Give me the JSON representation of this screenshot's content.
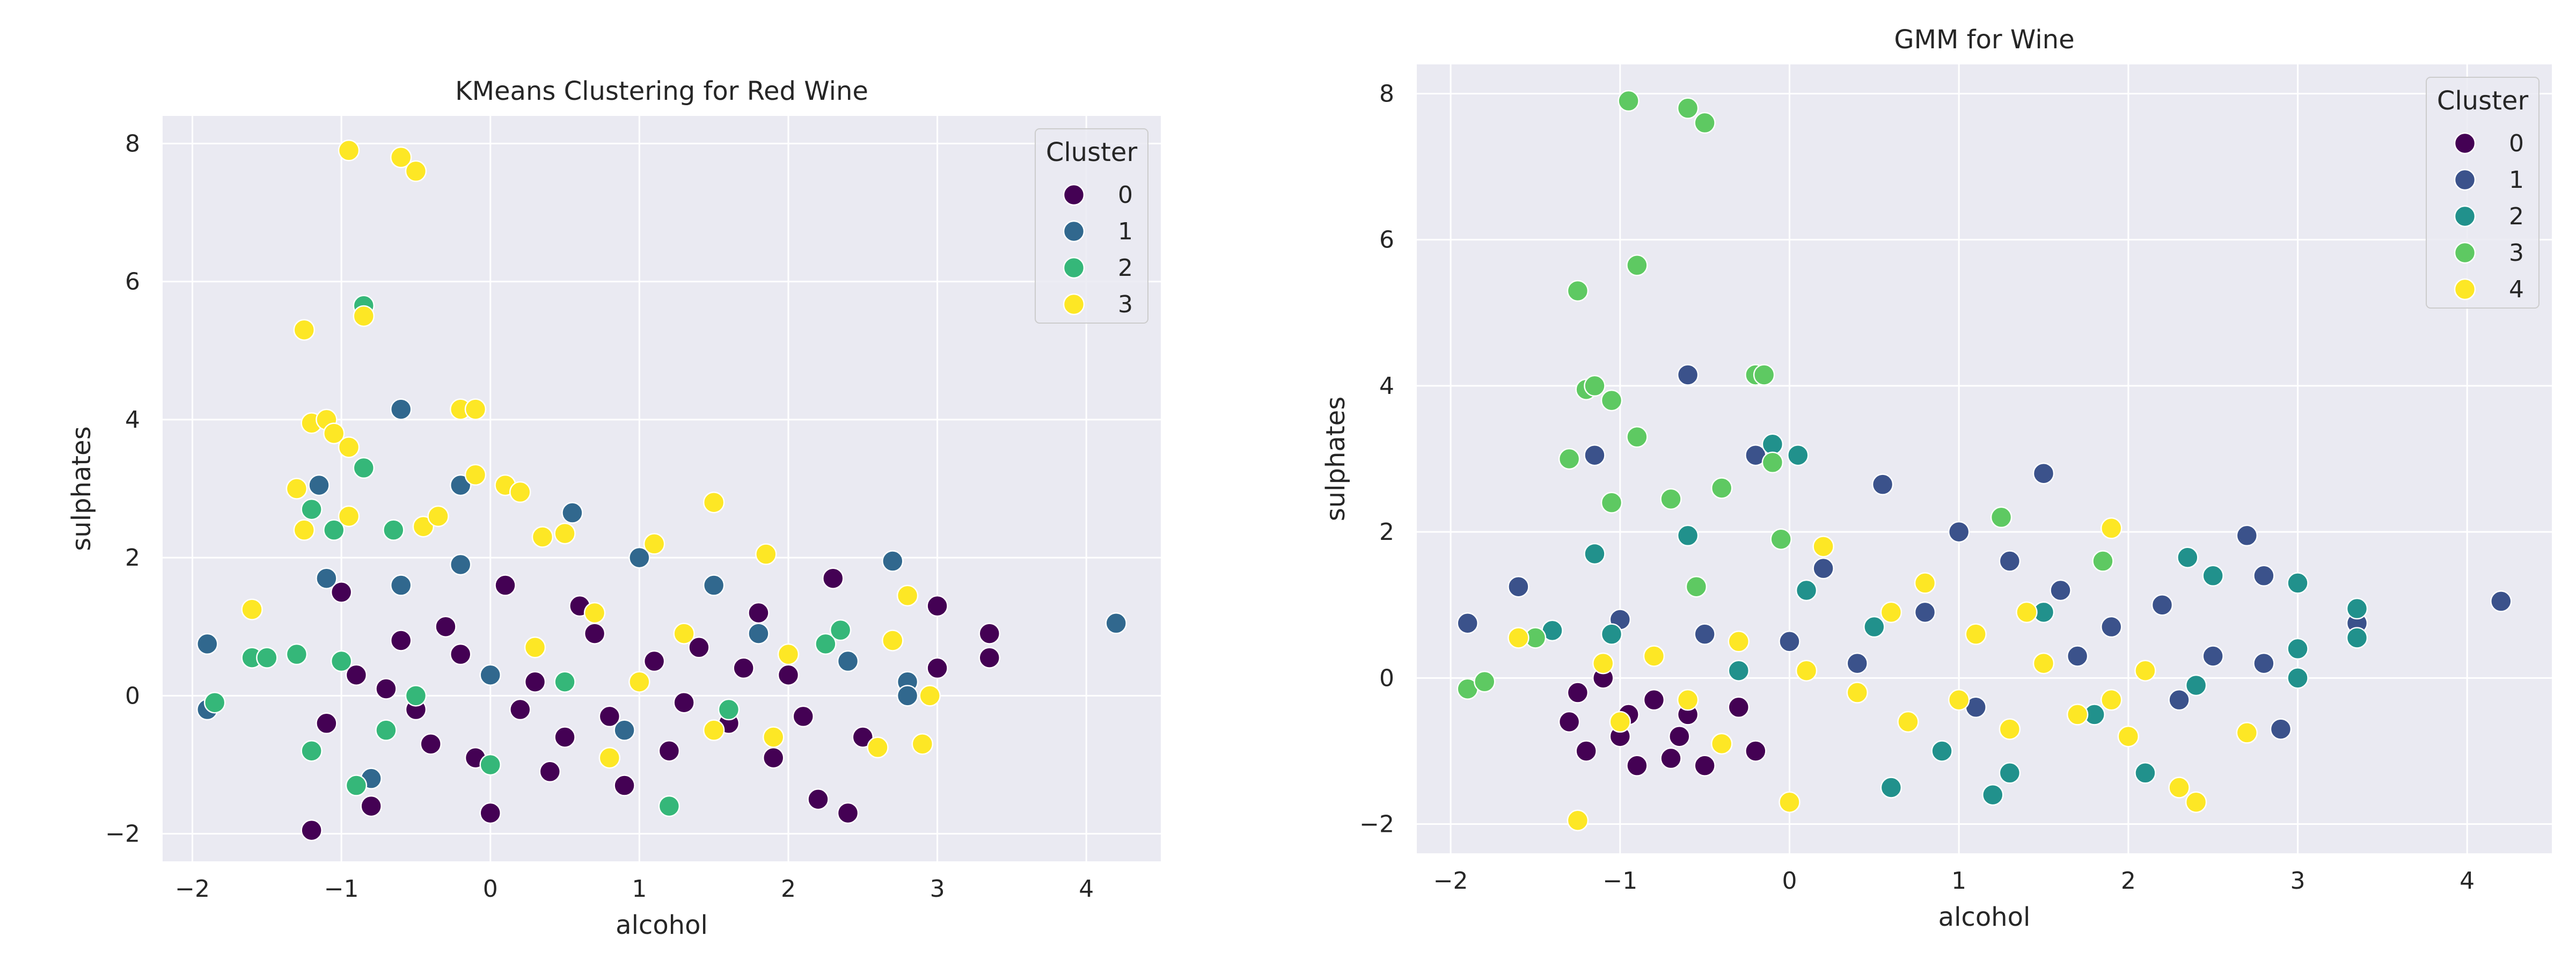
{
  "chart_data": [
    {
      "type": "scatter",
      "title": "KMeans Clustering for Red Wine",
      "xlabel": "alcohol",
      "ylabel": "sulphates",
      "xlim": [
        -2.2,
        4.5
      ],
      "ylim": [
        -2.4,
        8.4
      ],
      "xticks": [
        -2,
        -1,
        0,
        1,
        2,
        3,
        4
      ],
      "yticks": [
        -2,
        0,
        2,
        4,
        6,
        8
      ],
      "grid": true,
      "legend_title": "Cluster",
      "legend_position": "top-right",
      "series": [
        {
          "name": "0",
          "color": "#440154",
          "points": [
            [
              -1.2,
              -1.95
            ],
            [
              -1.0,
              1.5
            ],
            [
              -0.9,
              0.3
            ],
            [
              -0.8,
              -1.6
            ],
            [
              -0.6,
              0.8
            ],
            [
              -0.5,
              -0.2
            ],
            [
              -0.3,
              1.0
            ],
            [
              -0.1,
              -0.9
            ],
            [
              0.0,
              -1.7
            ],
            [
              0.1,
              1.6
            ],
            [
              0.3,
              0.2
            ],
            [
              0.5,
              -0.6
            ],
            [
              0.6,
              1.3
            ],
            [
              0.8,
              -0.3
            ],
            [
              0.9,
              -1.3
            ],
            [
              1.1,
              0.5
            ],
            [
              1.2,
              -0.8
            ],
            [
              1.4,
              0.7
            ],
            [
              1.6,
              -0.4
            ],
            [
              1.8,
              1.2
            ],
            [
              1.9,
              -0.9
            ],
            [
              2.0,
              0.3
            ],
            [
              2.2,
              -1.5
            ],
            [
              2.3,
              1.7
            ],
            [
              2.4,
              -1.7
            ],
            [
              2.5,
              -0.6
            ],
            [
              3.0,
              1.3
            ],
            [
              3.0,
              0.4
            ],
            [
              3.35,
              0.9
            ],
            [
              3.35,
              0.55
            ],
            [
              -1.1,
              -0.4
            ],
            [
              -0.7,
              0.1
            ],
            [
              -0.2,
              0.6
            ],
            [
              0.2,
              -0.2
            ],
            [
              0.7,
              0.9
            ],
            [
              1.3,
              -0.1
            ],
            [
              1.7,
              0.4
            ],
            [
              2.1,
              -0.3
            ],
            [
              -0.4,
              -0.7
            ],
            [
              0.4,
              -1.1
            ]
          ]
        },
        {
          "name": "1",
          "color": "#31688e",
          "points": [
            [
              -1.9,
              0.75
            ],
            [
              -1.9,
              -0.2
            ],
            [
              -1.15,
              3.05
            ],
            [
              -1.1,
              1.7
            ],
            [
              -0.6,
              4.15
            ],
            [
              -0.6,
              1.6
            ],
            [
              -0.2,
              3.05
            ],
            [
              -0.2,
              1.9
            ],
            [
              0.55,
              2.65
            ],
            [
              1.0,
              2.0
            ],
            [
              1.5,
              1.6
            ],
            [
              2.7,
              1.95
            ],
            [
              2.8,
              0.2
            ],
            [
              2.8,
              0.0
            ],
            [
              4.2,
              1.05
            ],
            [
              -0.8,
              -1.2
            ],
            [
              0.0,
              0.3
            ],
            [
              0.9,
              -0.5
            ],
            [
              1.8,
              0.9
            ],
            [
              2.4,
              0.5
            ]
          ]
        },
        {
          "name": "2",
          "color": "#35b779",
          "points": [
            [
              -1.85,
              -0.1
            ],
            [
              -1.6,
              0.55
            ],
            [
              -1.5,
              0.55
            ],
            [
              -1.3,
              0.6
            ],
            [
              -1.2,
              2.7
            ],
            [
              -1.05,
              2.4
            ],
            [
              -0.85,
              3.3
            ],
            [
              -0.85,
              5.65
            ],
            [
              -0.65,
              2.4
            ],
            [
              -1.2,
              -0.8
            ],
            [
              -0.9,
              -1.3
            ],
            [
              -0.5,
              0.0
            ],
            [
              0.0,
              -1.0
            ],
            [
              1.2,
              -1.6
            ],
            [
              2.25,
              0.75
            ],
            [
              2.35,
              0.95
            ],
            [
              -1.0,
              0.5
            ],
            [
              -0.7,
              -0.5
            ],
            [
              0.5,
              0.2
            ],
            [
              1.6,
              -0.2
            ]
          ]
        },
        {
          "name": "3",
          "color": "#fde725",
          "points": [
            [
              -1.6,
              1.25
            ],
            [
              -1.3,
              3.0
            ],
            [
              -1.25,
              5.3
            ],
            [
              -1.25,
              2.4
            ],
            [
              -1.2,
              3.95
            ],
            [
              -1.1,
              4.0
            ],
            [
              -1.05,
              3.8
            ],
            [
              -0.95,
              7.9
            ],
            [
              -0.95,
              3.6
            ],
            [
              -0.95,
              2.6
            ],
            [
              -0.85,
              5.5
            ],
            [
              -0.6,
              7.8
            ],
            [
              -0.5,
              7.6
            ],
            [
              -0.45,
              2.45
            ],
            [
              -0.35,
              2.6
            ],
            [
              -0.2,
              4.15
            ],
            [
              -0.1,
              4.15
            ],
            [
              -0.1,
              3.2
            ],
            [
              0.1,
              3.05
            ],
            [
              0.2,
              2.95
            ],
            [
              0.35,
              2.3
            ],
            [
              0.5,
              2.35
            ],
            [
              1.1,
              2.2
            ],
            [
              1.5,
              2.8
            ],
            [
              1.85,
              2.05
            ],
            [
              2.7,
              0.8
            ],
            [
              2.8,
              1.45
            ],
            [
              2.9,
              -0.7
            ],
            [
              2.95,
              0.0
            ],
            [
              2.6,
              -0.75
            ],
            [
              0.7,
              1.2
            ],
            [
              1.0,
              0.2
            ],
            [
              1.3,
              0.9
            ],
            [
              1.5,
              -0.5
            ],
            [
              2.0,
              0.6
            ],
            [
              0.8,
              -0.9
            ],
            [
              1.9,
              -0.6
            ],
            [
              0.3,
              0.7
            ]
          ]
        }
      ]
    },
    {
      "type": "scatter",
      "title": "GMM for Wine",
      "xlabel": "alcohol",
      "ylabel": "sulphates",
      "xlim": [
        -2.2,
        4.5
      ],
      "ylim": [
        -2.4,
        8.4
      ],
      "xticks": [
        -2,
        -1,
        0,
        1,
        2,
        3,
        4
      ],
      "yticks": [
        -2,
        0,
        2,
        4,
        6,
        8
      ],
      "grid": true,
      "legend_title": "Cluster",
      "legend_position": "top-right",
      "series": [
        {
          "name": "0",
          "color": "#440154",
          "points": [
            [
              -1.3,
              -0.6
            ],
            [
              -1.2,
              -1.0
            ],
            [
              -1.1,
              0.0
            ],
            [
              -1.0,
              -0.8
            ],
            [
              -0.9,
              -1.2
            ],
            [
              -0.8,
              -0.3
            ],
            [
              -0.7,
              -1.1
            ],
            [
              -0.6,
              -0.5
            ],
            [
              -0.5,
              -1.2
            ],
            [
              -0.4,
              -0.9
            ],
            [
              -0.3,
              -0.4
            ],
            [
              -0.2,
              -1.0
            ],
            [
              -1.25,
              -0.2
            ],
            [
              -0.95,
              -0.5
            ],
            [
              -0.65,
              -0.8
            ]
          ]
        },
        {
          "name": "1",
          "color": "#3b528b",
          "points": [
            [
              -1.9,
              0.75
            ],
            [
              -1.6,
              1.25
            ],
            [
              -1.15,
              3.05
            ],
            [
              -0.6,
              4.15
            ],
            [
              -0.2,
              3.05
            ],
            [
              0.55,
              2.65
            ],
            [
              1.0,
              2.0
            ],
            [
              1.5,
              2.8
            ],
            [
              2.7,
              1.95
            ],
            [
              2.8,
              1.4
            ],
            [
              2.8,
              0.2
            ],
            [
              2.9,
              -0.7
            ],
            [
              3.35,
              0.75
            ],
            [
              4.2,
              1.05
            ],
            [
              -0.5,
              0.6
            ],
            [
              0.2,
              1.5
            ],
            [
              0.8,
              0.9
            ],
            [
              1.3,
              1.6
            ],
            [
              1.7,
              0.3
            ],
            [
              2.2,
              1.0
            ],
            [
              0.0,
              0.5
            ],
            [
              1.1,
              -0.4
            ],
            [
              1.9,
              0.7
            ],
            [
              2.5,
              0.3
            ],
            [
              -1.0,
              0.8
            ],
            [
              0.4,
              0.2
            ],
            [
              1.6,
              1.2
            ],
            [
              2.3,
              -0.3
            ]
          ]
        },
        {
          "name": "2",
          "color": "#21918c",
          "points": [
            [
              -1.4,
              0.65
            ],
            [
              -1.15,
              1.7
            ],
            [
              -1.05,
              0.6
            ],
            [
              -0.6,
              1.95
            ],
            [
              -0.1,
              3.2
            ],
            [
              0.05,
              3.05
            ],
            [
              0.1,
              1.2
            ],
            [
              0.6,
              -1.5
            ],
            [
              1.2,
              -1.6
            ],
            [
              1.3,
              -1.3
            ],
            [
              2.1,
              -1.3
            ],
            [
              2.35,
              1.65
            ],
            [
              2.5,
              1.4
            ],
            [
              3.0,
              1.3
            ],
            [
              3.0,
              0.4
            ],
            [
              3.0,
              0.0
            ],
            [
              3.35,
              0.95
            ],
            [
              3.35,
              0.55
            ],
            [
              -0.3,
              0.1
            ],
            [
              0.5,
              0.7
            ],
            [
              0.9,
              -1.0
            ],
            [
              1.8,
              -0.5
            ],
            [
              2.4,
              -0.1
            ],
            [
              1.5,
              0.9
            ]
          ]
        },
        {
          "name": "3",
          "color": "#5ec962",
          "points": [
            [
              -1.9,
              -0.15
            ],
            [
              -1.8,
              -0.05
            ],
            [
              -1.5,
              0.55
            ],
            [
              -1.3,
              3.0
            ],
            [
              -1.25,
              5.3
            ],
            [
              -1.2,
              3.95
            ],
            [
              -1.15,
              4.0
            ],
            [
              -1.05,
              3.8
            ],
            [
              -1.05,
              2.4
            ],
            [
              -0.95,
              7.9
            ],
            [
              -0.9,
              5.65
            ],
            [
              -0.9,
              3.3
            ],
            [
              -0.7,
              2.45
            ],
            [
              -0.6,
              7.8
            ],
            [
              -0.5,
              7.6
            ],
            [
              -0.4,
              2.6
            ],
            [
              -0.2,
              4.15
            ],
            [
              -0.15,
              4.15
            ],
            [
              -0.1,
              2.95
            ],
            [
              -0.05,
              1.9
            ],
            [
              1.25,
              2.2
            ],
            [
              1.85,
              1.6
            ],
            [
              -0.55,
              1.25
            ]
          ]
        },
        {
          "name": "4",
          "color": "#fde725",
          "points": [
            [
              -1.6,
              0.55
            ],
            [
              -1.25,
              -1.95
            ],
            [
              -1.0,
              -0.6
            ],
            [
              -0.8,
              0.3
            ],
            [
              -0.6,
              -0.3
            ],
            [
              -0.3,
              0.5
            ],
            [
              0.0,
              -1.7
            ],
            [
              0.2,
              1.8
            ],
            [
              0.4,
              -0.2
            ],
            [
              0.6,
              0.9
            ],
            [
              0.8,
              1.3
            ],
            [
              1.0,
              -0.3
            ],
            [
              1.1,
              0.6
            ],
            [
              1.3,
              -0.7
            ],
            [
              1.5,
              0.2
            ],
            [
              1.7,
              -0.5
            ],
            [
              1.9,
              2.05
            ],
            [
              1.9,
              -0.3
            ],
            [
              2.1,
              0.1
            ],
            [
              2.3,
              -1.5
            ],
            [
              2.4,
              -1.7
            ],
            [
              2.7,
              -0.75
            ],
            [
              -0.4,
              -0.9
            ],
            [
              0.7,
              -0.6
            ],
            [
              1.4,
              0.9
            ],
            [
              2.0,
              -0.8
            ],
            [
              -1.1,
              0.2
            ],
            [
              0.1,
              0.1
            ]
          ]
        }
      ]
    }
  ]
}
